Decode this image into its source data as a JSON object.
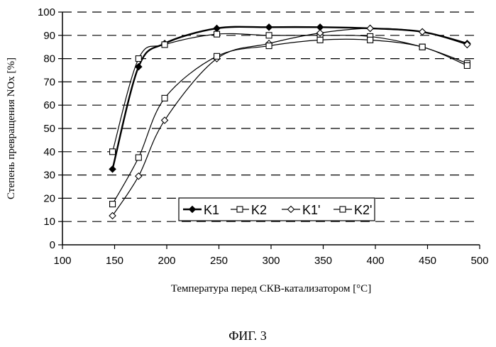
{
  "chart_data": {
    "type": "line",
    "xlabel": "Температура перед СКВ-катализатором [°C]",
    "ylabel": "Степень превращения NOx [%]",
    "xlim": [
      100,
      500
    ],
    "ylim": [
      0,
      100
    ],
    "xticks": [
      "100",
      "150",
      "200",
      "250",
      "300",
      "350",
      "400",
      "450",
      "500"
    ],
    "yticks": [
      "0",
      "10",
      "20",
      "30",
      "40",
      "50",
      "60",
      "70",
      "80",
      "90",
      "100"
    ],
    "grid": "horizontal dashed",
    "legend_position": "bottom-right",
    "series": [
      {
        "name": "K1",
        "marker": "diamond-filled",
        "x": [
          148,
          173,
          198,
          248,
          298,
          347,
          395,
          445,
          488
        ],
        "y": [
          32.5,
          76.5,
          86.5,
          93,
          93.5,
          93.5,
          93,
          91.5,
          86.5
        ]
      },
      {
        "name": "K2",
        "marker": "square-open",
        "x": [
          148,
          173,
          198,
          248,
          298,
          347,
          395,
          445,
          488
        ],
        "y": [
          40,
          80,
          86,
          90.5,
          90,
          90,
          89.5,
          85,
          78
        ]
      },
      {
        "name": "K1'",
        "marker": "diamond-open",
        "x": [
          148,
          173,
          198,
          248,
          298,
          347,
          395,
          445,
          488
        ],
        "y": [
          12.5,
          29.5,
          53.5,
          80,
          86.5,
          91,
          93,
          91.5,
          86
        ]
      },
      {
        "name": "K2'",
        "marker": "square-open",
        "x": [
          148,
          173,
          198,
          248,
          298,
          347,
          395,
          445,
          488
        ],
        "y": [
          17.5,
          37.5,
          63,
          81,
          85.5,
          88,
          88,
          85,
          77
        ]
      }
    ]
  },
  "caption": "ФИГ. 3"
}
